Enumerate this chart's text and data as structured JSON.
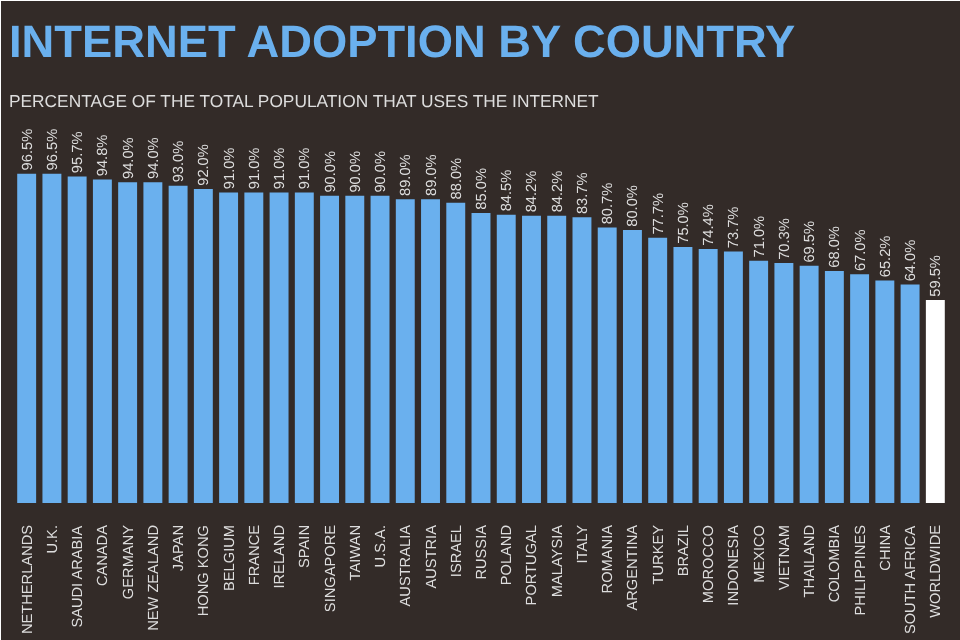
{
  "chart_data": {
    "type": "bar",
    "title": "INTERNET ADOPTION BY COUNTRY",
    "subtitle": "PERCENTAGE OF THE TOTAL POPULATION THAT USES THE INTERNET",
    "categories": [
      "NETHERLANDS",
      "U.K.",
      "SAUDI ARABIA",
      "CANADA",
      "GERMANY",
      "NEW ZEALAND",
      "JAPAN",
      "HONG KONG",
      "BELGIUM",
      "FRANCE",
      "IRELAND",
      "SPAIN",
      "SINGAPORE",
      "TAIWAN",
      "U.S.A.",
      "AUSTRALIA",
      "AUSTRIA",
      "ISRAEL",
      "RUSSIA",
      "POLAND",
      "PORTUGAL",
      "MALAYSIA",
      "ITALY",
      "ROMANIA",
      "ARGENTINA",
      "TURKEY",
      "BRAZIL",
      "MOROCCO",
      "INDONESIA",
      "MEXICO",
      "VIETNAM",
      "THAILAND",
      "COLOMBIA",
      "PHILIPPINES",
      "CHINA",
      "SOUTH AFRICA",
      "WORLDWIDE"
    ],
    "values": [
      96.5,
      96.5,
      95.7,
      94.8,
      94.0,
      94.0,
      93.0,
      92.0,
      91.0,
      91.0,
      91.0,
      91.0,
      90.0,
      90.0,
      90.0,
      89.0,
      89.0,
      88.0,
      85.0,
      84.5,
      84.2,
      84.2,
      83.7,
      80.7,
      80.0,
      77.7,
      75.0,
      74.4,
      73.7,
      71.0,
      70.3,
      69.5,
      68.0,
      67.0,
      65.2,
      64.0,
      59.5
    ],
    "value_labels": [
      "96.5%",
      "96.5%",
      "95.7%",
      "94.8%",
      "94.0%",
      "94.0%",
      "93.0%",
      "92.0%",
      "91.0%",
      "91.0%",
      "91.0%",
      "91.0%",
      "90.0%",
      "90.0%",
      "90.0%",
      "89.0%",
      "89.0%",
      "88.0%",
      "85.0%",
      "84.5%",
      "84.2%",
      "84.2%",
      "83.7%",
      "80.7%",
      "80.0%",
      "77.7%",
      "75.0%",
      "74.4%",
      "73.7%",
      "71.0%",
      "70.3%",
      "69.5%",
      "68.0%",
      "67.0%",
      "65.2%",
      "64.0%",
      "59.5%"
    ],
    "colors": [
      "#6ab0ee",
      "#6ab0ee",
      "#6ab0ee",
      "#6ab0ee",
      "#6ab0ee",
      "#6ab0ee",
      "#6ab0ee",
      "#6ab0ee",
      "#6ab0ee",
      "#6ab0ee",
      "#6ab0ee",
      "#6ab0ee",
      "#6ab0ee",
      "#6ab0ee",
      "#6ab0ee",
      "#6ab0ee",
      "#6ab0ee",
      "#6ab0ee",
      "#6ab0ee",
      "#6ab0ee",
      "#6ab0ee",
      "#6ab0ee",
      "#6ab0ee",
      "#6ab0ee",
      "#6ab0ee",
      "#6ab0ee",
      "#6ab0ee",
      "#6ab0ee",
      "#6ab0ee",
      "#6ab0ee",
      "#6ab0ee",
      "#6ab0ee",
      "#6ab0ee",
      "#6ab0ee",
      "#6ab0ee",
      "#6ab0ee",
      "#ffffff"
    ],
    "grid": false
  }
}
